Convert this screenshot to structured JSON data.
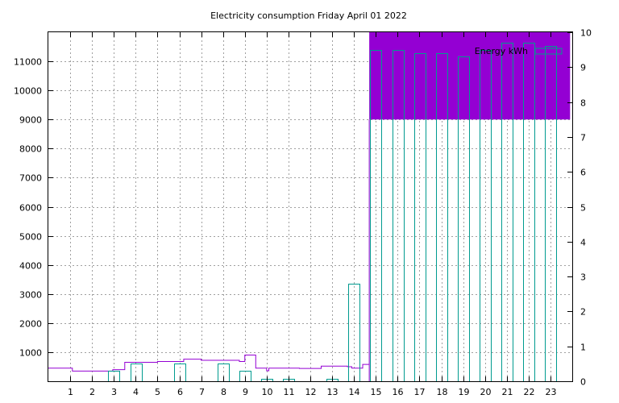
{
  "chart_data": {
    "type": "bar",
    "title": "Electricity consumption Friday April 01 2022",
    "xlabel": "",
    "ylabel": "",
    "x_ticks": [
      "1",
      "2",
      "3",
      "4",
      "5",
      "6",
      "7",
      "8",
      "9",
      "10",
      "11",
      "12",
      "13",
      "14",
      "15",
      "16",
      "17",
      "18",
      "19",
      "20",
      "21",
      "22",
      "23"
    ],
    "xlim": [
      0,
      24
    ],
    "y_left": {
      "ylim": [
        0,
        12000
      ],
      "ticks": [
        1000,
        2000,
        3000,
        4000,
        5000,
        6000,
        7000,
        8000,
        9000,
        10000,
        11000
      ]
    },
    "y_right": {
      "ylim": [
        0,
        10
      ],
      "ticks": [
        0,
        1,
        2,
        3,
        4,
        5,
        6,
        7,
        8,
        9,
        10
      ]
    },
    "grid": true,
    "legend": {
      "position": "top-right",
      "entries": [
        {
          "label": "Energy kWh",
          "color": "#009b8f"
        }
      ]
    },
    "series": [
      {
        "name": "Energy kWh",
        "axis": "right",
        "style": "boxes",
        "color": "#009b8f",
        "x": [
          0,
          1,
          2,
          3,
          4,
          5,
          6,
          7,
          8,
          9,
          10,
          11,
          12,
          13,
          14,
          15,
          16,
          17,
          18,
          19,
          20,
          21,
          22,
          23
        ],
        "values": [
          0,
          0,
          0,
          0.3,
          0.5,
          0,
          0.5,
          0,
          0.5,
          0.3,
          0.08,
          0.08,
          0,
          0.08,
          2.8,
          9.5,
          9.5,
          9.4,
          9.4,
          9.3,
          9.5,
          9.7,
          9.7,
          9.6
        ]
      },
      {
        "axis": "left",
        "style": "steps",
        "color": "#9400d3",
        "x": [
          0,
          1.1,
          2.95,
          3.5,
          5,
          6.2,
          7,
          8.75,
          9,
          9.5,
          10,
          10.1,
          11.5,
          12.5,
          13.7,
          13.9,
          14.4,
          14.7
        ],
        "values": [
          450,
          350,
          400,
          650,
          680,
          760,
          720,
          680,
          900,
          450,
          360,
          450,
          440,
          520,
          500,
          450,
          580,
          430
        ],
        "fill": {
          "x_from": 14.7,
          "x_to": 23.9,
          "y_from": 9000,
          "y_to": 12000
        }
      }
    ]
  }
}
